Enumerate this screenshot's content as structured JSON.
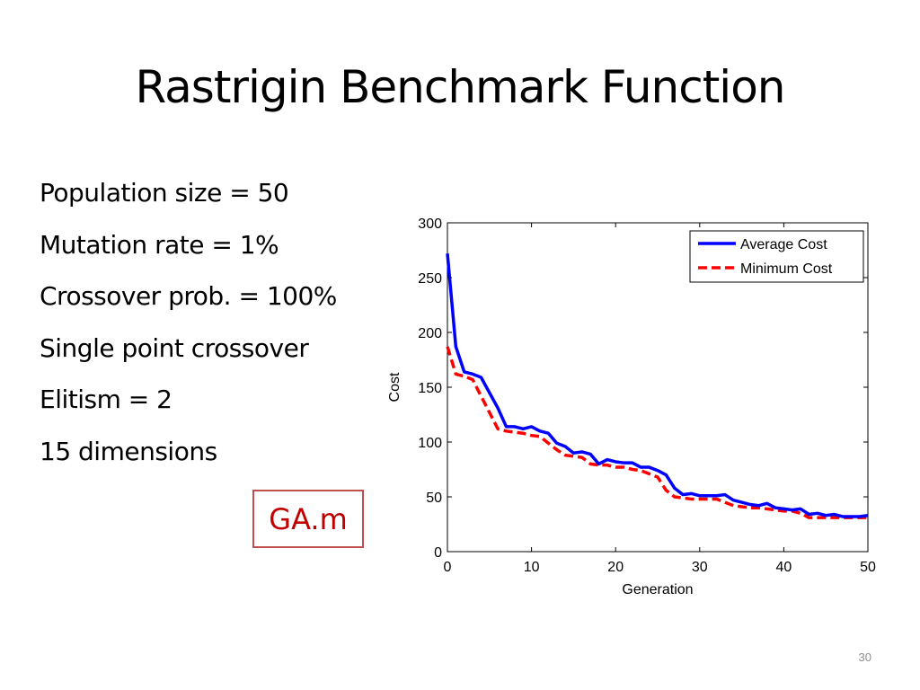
{
  "slide": {
    "title": "Rastrigin Benchmark Function",
    "bullets": [
      "Population size = 50",
      "Mutation rate = 1%",
      "Crossover prob. = 100%",
      "Single point crossover",
      "Elitism = 2",
      "15 dimensions"
    ],
    "file_label": "GA.m",
    "page_number": "30"
  },
  "colors": {
    "average": "#0000ff",
    "minimum": "#ff0000",
    "file_text": "#c00000",
    "file_border": "#c0504d"
  },
  "chart_data": {
    "type": "line",
    "title": "",
    "xlabel": "Generation",
    "ylabel": "Cost",
    "xlim": [
      0,
      50
    ],
    "ylim": [
      0,
      300
    ],
    "xticks": [
      0,
      10,
      20,
      30,
      40,
      50
    ],
    "yticks": [
      0,
      50,
      100,
      150,
      200,
      250,
      300
    ],
    "grid": false,
    "legend_position": "top-right",
    "x": [
      0,
      1,
      2,
      3,
      4,
      5,
      6,
      7,
      8,
      9,
      10,
      11,
      12,
      13,
      14,
      15,
      16,
      17,
      18,
      19,
      20,
      21,
      22,
      23,
      24,
      25,
      26,
      27,
      28,
      29,
      30,
      31,
      32,
      33,
      34,
      35,
      36,
      37,
      38,
      39,
      40,
      41,
      42,
      43,
      44,
      45,
      46,
      47,
      48,
      49,
      50
    ],
    "series": [
      {
        "name": "Average Cost",
        "style": "solid",
        "values": [
          272,
          187,
          164,
          162,
          159,
          145,
          131,
          114,
          114,
          112,
          114,
          110,
          108,
          99,
          96,
          90,
          91,
          89,
          80,
          84,
          82,
          81,
          81,
          77,
          77,
          74,
          70,
          58,
          52,
          53,
          51,
          51,
          51,
          52,
          47,
          45,
          43,
          42,
          44,
          40,
          39,
          38,
          39,
          34,
          35,
          33,
          34,
          32,
          32,
          32,
          33
        ]
      },
      {
        "name": "Minimum Cost",
        "style": "dashed",
        "values": [
          187,
          162,
          160,
          157,
          142,
          127,
          112,
          110,
          109,
          108,
          106,
          105,
          99,
          93,
          88,
          87,
          86,
          80,
          79,
          79,
          77,
          77,
          75,
          74,
          71,
          68,
          56,
          50,
          49,
          48,
          48,
          48,
          48,
          45,
          42,
          41,
          40,
          40,
          39,
          38,
          37,
          37,
          35,
          31,
          31,
          31,
          31,
          31,
          31,
          31,
          31
        ]
      }
    ]
  }
}
